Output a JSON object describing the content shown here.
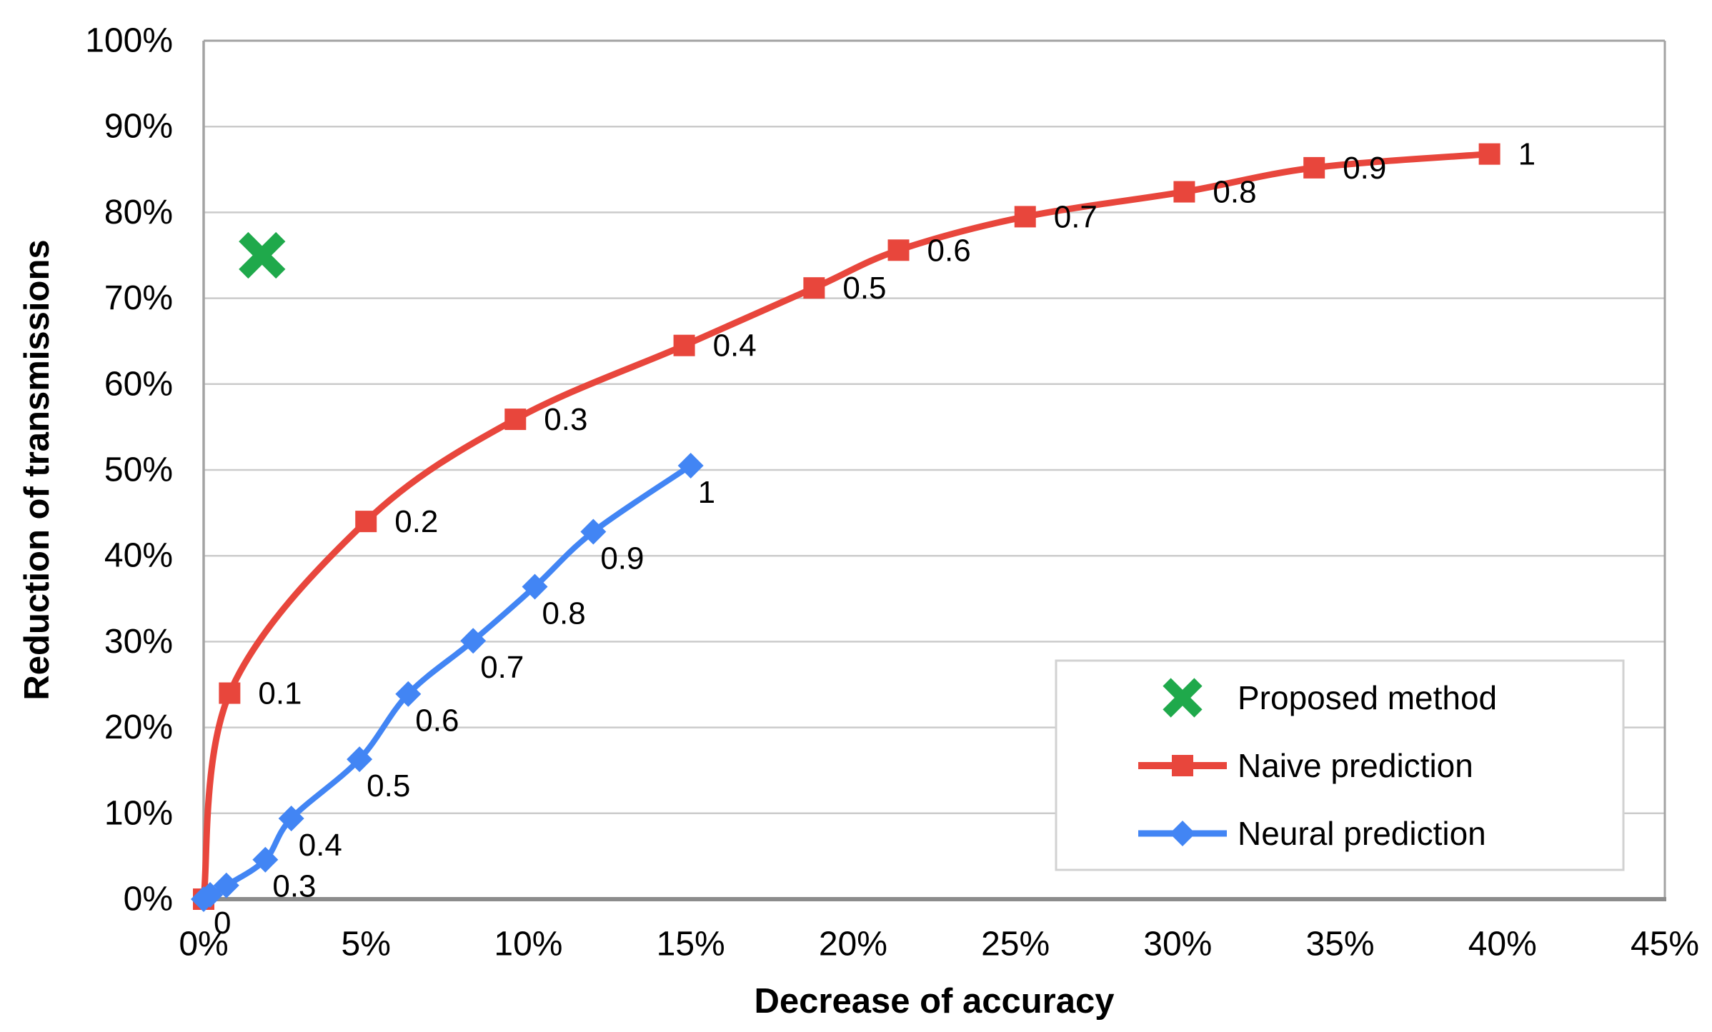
{
  "chart_data": {
    "type": "line",
    "title": "",
    "xlabel": "Decrease of accuracy",
    "ylabel": "Reduction of transmissions",
    "xlim": [
      0,
      45
    ],
    "ylim": [
      0,
      100
    ],
    "x_tick_labels": [
      "0%",
      "5%",
      "10%",
      "15%",
      "20%",
      "25%",
      "30%",
      "35%",
      "40%",
      "45%"
    ],
    "y_tick_labels": [
      "0%",
      "10%",
      "20%",
      "30%",
      "40%",
      "50%",
      "60%",
      "70%",
      "80%",
      "90%",
      "100%"
    ],
    "grid": "horizontal-only",
    "legend_position": "inside-right",
    "colors": {
      "proposed_green": "#1FA94B",
      "naive_red": "#E8463C",
      "neural_blue": "#4285F4",
      "grid": "#CBCBCB",
      "axis": "#A3A3A3",
      "axis_bottom": "#8C8C8C",
      "text": "#000000",
      "background": "#FFFFFF",
      "legend_border": "#D2D2D2"
    },
    "series": [
      {
        "name": "Proposed method",
        "type": "scatter",
        "marker": "x",
        "color": "#1FA94B",
        "points": [
          {
            "x": 1.8,
            "y": 75,
            "label": ""
          }
        ]
      },
      {
        "name": "Naive prediction",
        "type": "smooth-line",
        "marker": "square",
        "color": "#E8463C",
        "points": [
          {
            "x": 0,
            "y": 0,
            "label": "0"
          },
          {
            "x": 0.8,
            "y": 24,
            "label": "0.1"
          },
          {
            "x": 5,
            "y": 44,
            "label": "0.2"
          },
          {
            "x": 9.6,
            "y": 55.9,
            "label": "0.3"
          },
          {
            "x": 14.8,
            "y": 64.5,
            "label": "0.4"
          },
          {
            "x": 18.8,
            "y": 71.2,
            "label": "0.5"
          },
          {
            "x": 21.4,
            "y": 75.6,
            "label": "0.6"
          },
          {
            "x": 25.3,
            "y": 79.5,
            "label": "0.7"
          },
          {
            "x": 30.2,
            "y": 82.4,
            "label": "0.8"
          },
          {
            "x": 34.2,
            "y": 85.2,
            "label": "0.9"
          },
          {
            "x": 39.6,
            "y": 86.8,
            "label": "1"
          }
        ]
      },
      {
        "name": "Neural prediction",
        "type": "smooth-line",
        "marker": "diamond",
        "color": "#4285F4",
        "points": [
          {
            "x": 0,
            "y": 0,
            "label": ""
          },
          {
            "x": 0.2,
            "y": 0.5,
            "label": ""
          },
          {
            "x": 0.7,
            "y": 1.6,
            "label": ""
          },
          {
            "x": 1.9,
            "y": 4.6,
            "label": "0.3"
          },
          {
            "x": 2.7,
            "y": 9.4,
            "label": "0.4"
          },
          {
            "x": 4.8,
            "y": 16.3,
            "label": "0.5"
          },
          {
            "x": 6.3,
            "y": 23.9,
            "label": "0.6"
          },
          {
            "x": 8.3,
            "y": 30.1,
            "label": "0.7"
          },
          {
            "x": 10.2,
            "y": 36.4,
            "label": "0.8"
          },
          {
            "x": 12,
            "y": 42.8,
            "label": "0.9"
          },
          {
            "x": 15,
            "y": 50.5,
            "label": "1"
          }
        ]
      }
    ],
    "legend_entries": [
      "Proposed method",
      "Naive prediction",
      "Neural prediction"
    ]
  }
}
